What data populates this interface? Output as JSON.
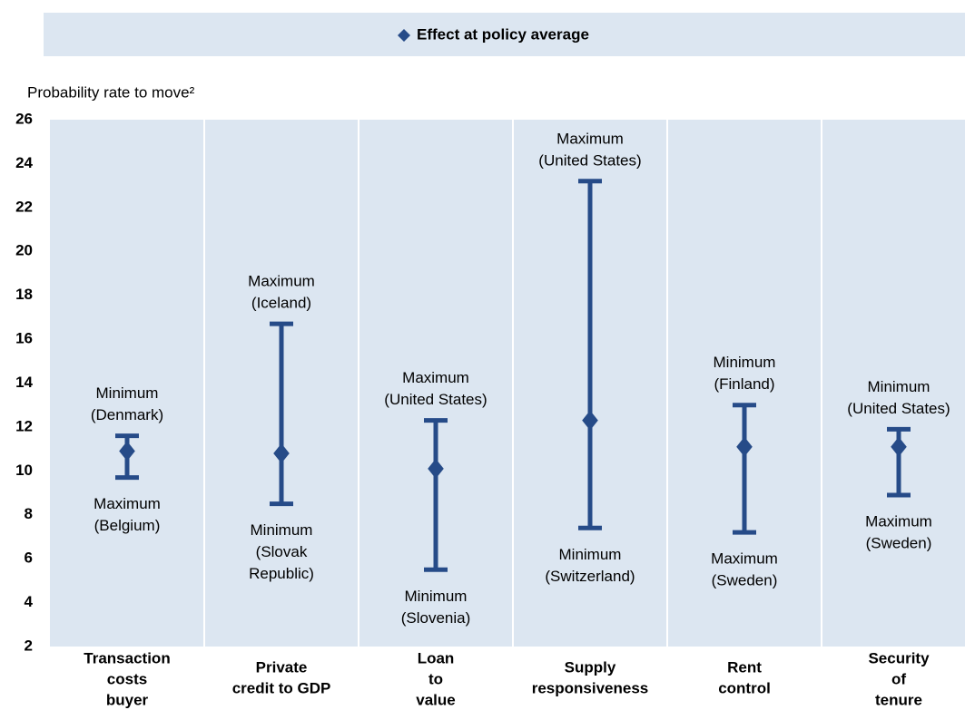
{
  "chart_data": {
    "type": "range",
    "legend_position": "top",
    "y_label": "Probability rate to move²",
    "categories": [
      [
        "Transaction",
        "costs",
        "buyer"
      ],
      [
        "Private",
        "credit to GDP"
      ],
      [
        "Loan",
        "to",
        "value"
      ],
      [
        "Supply",
        "responsiveness"
      ],
      [
        "Rent",
        "control"
      ],
      [
        "Security",
        "of",
        "tenure"
      ]
    ],
    "series": [
      {
        "name": "Effect at policy average",
        "color": "#264b88",
        "values": [
          10.9,
          10.8,
          10.1,
          12.3,
          11.1,
          11.1
        ]
      }
    ],
    "low": [
      9.7,
      8.5,
      5.5,
      7.4,
      7.2,
      8.9
    ],
    "high": [
      11.6,
      16.7,
      12.3,
      23.2,
      13.0,
      11.9
    ],
    "top_labels": [
      [
        "Minimum",
        "(Denmark)"
      ],
      [
        "Maximum",
        "(Iceland)"
      ],
      [
        "Maximum",
        "(United States)"
      ],
      [
        "Maximum",
        "(United States)"
      ],
      [
        "Minimum",
        "(Finland)"
      ],
      [
        "Minimum",
        "(United States)"
      ]
    ],
    "bottom_labels": [
      [
        "Maximum",
        "(Belgium)"
      ],
      [
        "Minimum",
        "(Slovak",
        "Republic)"
      ],
      [
        "Minimum",
        "(Slovenia)"
      ],
      [
        "Minimum",
        "(Switzerland)"
      ],
      [
        "Maximum",
        "(Sweden)"
      ],
      [
        "Maximum",
        "(Sweden)"
      ]
    ],
    "ylim": [
      2,
      26
    ],
    "yticks": [
      2,
      4,
      6,
      8,
      10,
      12,
      14,
      16,
      18,
      20,
      22,
      24,
      26
    ],
    "grid": true
  }
}
